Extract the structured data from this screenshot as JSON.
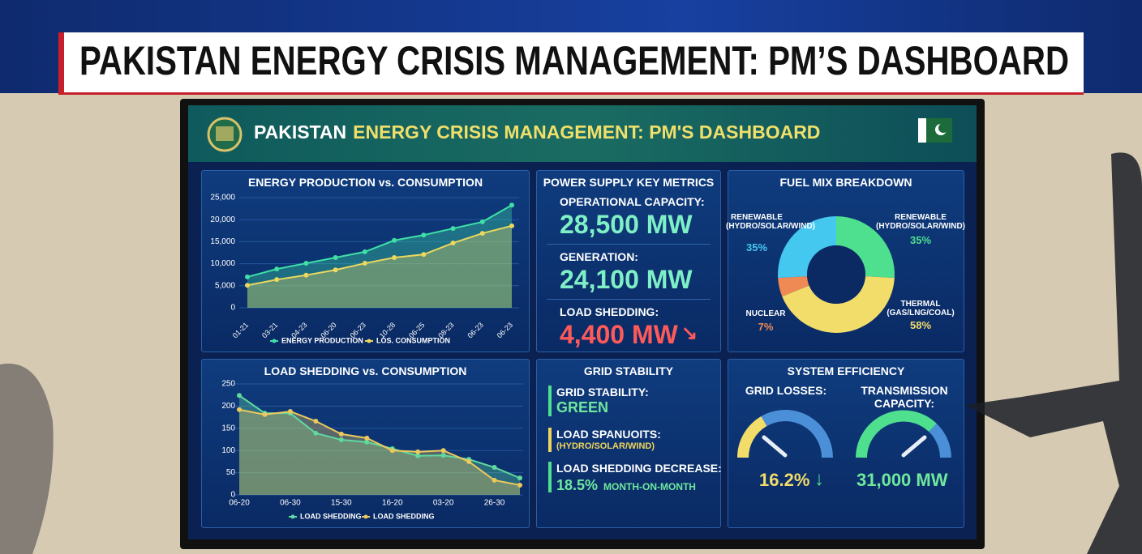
{
  "banner": {
    "title": "PAKISTAN ENERGY CRISIS MANAGEMENT: PM’S DASHBOARD"
  },
  "screen": {
    "title_lead": "PAKISTAN",
    "title_rest": "ENERGY CRISIS MANAGEMENT: PM'S DASHBOARD"
  },
  "chart_data": [
    {
      "type": "area",
      "title": "ENERGY PRODUCTION vs. CONSUMPTION",
      "categories": [
        "01-21",
        "03-21",
        "04-23",
        "06-20",
        "06-23",
        "10-28",
        "06-25",
        "08-23",
        "06-23",
        "06-23"
      ],
      "series": [
        {
          "name": "ENERGY PRODUCTION",
          "color": "#3fe0a6",
          "values": [
            7000,
            8800,
            10100,
            11400,
            12700,
            15300,
            16500,
            18000,
            19500,
            23300
          ]
        },
        {
          "name": "LOS. CONSUMPTION",
          "color": "#ecd85e",
          "values": [
            5100,
            6400,
            7400,
            8600,
            10100,
            11400,
            12100,
            14700,
            16900,
            18600
          ]
        }
      ],
      "ylim": [
        0,
        25000
      ],
      "yticks": [
        0,
        {
          "value": 5000,
          "label": "5,000"
        },
        {
          "value": 10000,
          "label": "10,000"
        },
        {
          "value": 15000,
          "label": "15,000"
        },
        {
          "value": 20000,
          "label": "20,000"
        },
        {
          "value": 25000,
          "label": "25,000"
        }
      ],
      "grid": true
    },
    {
      "type": "area",
      "title": "LOAD SHEDDING vs. CONSUMPTION",
      "categories": [
        "06-20",
        null,
        "06-30",
        null,
        "15-30",
        null,
        "16-20",
        null,
        "03-20",
        null,
        "26-30",
        null
      ],
      "series": [
        {
          "name": "LOAD SHEDDING",
          "color": "#5fd9a0",
          "values": [
            224,
            184,
            184,
            139,
            124,
            119,
            104,
            88,
            89,
            80,
            62,
            38
          ]
        },
        {
          "name": "LOAD SHEDDING",
          "color": "#ecc95c",
          "values": [
            192,
            181,
            188,
            166,
            137,
            128,
            100,
            97,
            100,
            75,
            33,
            22
          ]
        }
      ],
      "ylim": [
        0,
        250
      ],
      "yticks": [
        0,
        50,
        100,
        150,
        200,
        250
      ],
      "grid": true
    },
    {
      "type": "donut",
      "title": "FUEL MIX BREAKDOWN",
      "categories": [
        "RENEWABLE (HYDRO/SOLAR/WIND)",
        "THERMAL (GAS/LNG/COAL)",
        "NUCLEAR",
        "RENEWABLE (HYDRO/SOLAR/WIND)"
      ],
      "values": [
        35,
        58,
        7,
        35
      ],
      "value_labels": [
        "35%",
        "58%",
        "7%",
        "35%"
      ],
      "colors": [
        "#4fe08f",
        "#f2dc6a",
        "#f08a55",
        "#45c8f0"
      ]
    }
  ],
  "metrics": {
    "title": "POWER SUPPLY KEY METRICS",
    "items": [
      {
        "label": "OPERATIONAL CAPACITY:",
        "value": "28,500 MW"
      },
      {
        "label": "GENERATION:",
        "value": "24,100 MW"
      },
      {
        "label": "LOAD SHEDDING:",
        "value": "4,400 MW"
      }
    ]
  },
  "grid_stability": {
    "title": "GRID STABILITY",
    "items": [
      {
        "label": "GRID STABILITY:",
        "value": "GREEN"
      },
      {
        "label": "LOAD SPANUOITS:",
        "value": "(HYDRO/SOLAR/WIND)"
      },
      {
        "label": "LOAD SHEDDING DECREASE:",
        "value": "18.5%",
        "note": "MONTH-ON-MONTH"
      }
    ]
  },
  "system_efficiency": {
    "title": "SYSTEM EFFICIENCY",
    "gauges": [
      {
        "label": "GRID LOSSES:",
        "value": "16.2%"
      },
      {
        "label": "TRANSMISSION CAPACITY:",
        "value": "31,000 MW"
      }
    ]
  }
}
